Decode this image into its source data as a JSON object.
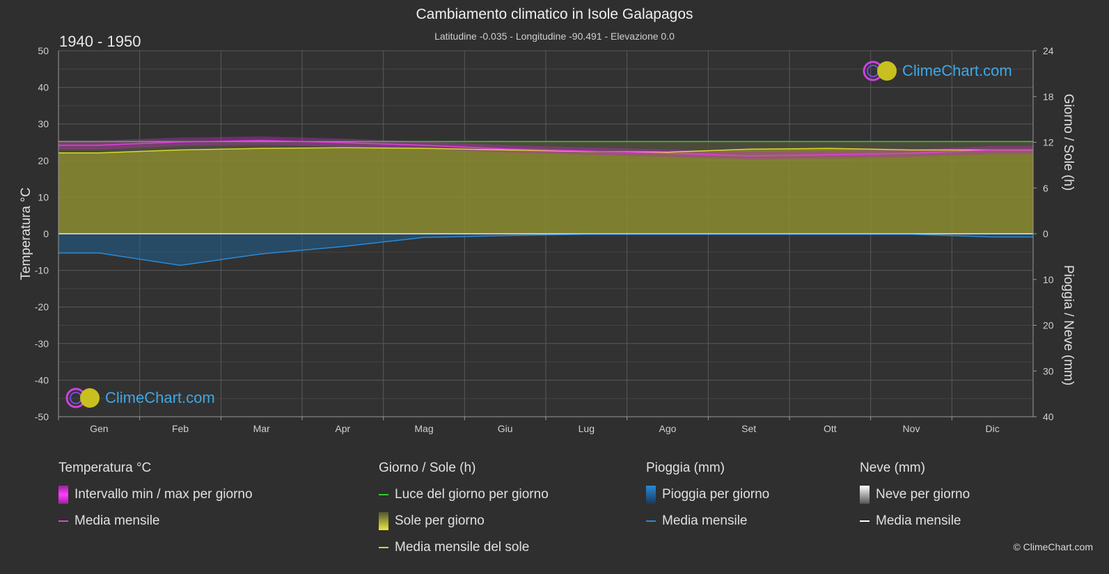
{
  "header": {
    "title": "Cambiamento climatico in Isole Galapagos",
    "subtitle": "Latitudine -0.035 - Longitudine -90.491 - Elevazione 0.0",
    "period": "1940 - 1950"
  },
  "logo_text": "ClimeChart.com",
  "copyright": "© ClimeChart.com",
  "chart_data": {
    "type": "area",
    "months": [
      "Gen",
      "Feb",
      "Mar",
      "Apr",
      "Mag",
      "Giu",
      "Lug",
      "Ago",
      "Set",
      "Ott",
      "Nov",
      "Dic"
    ],
    "axes": {
      "left": {
        "label": "Temperatura °C",
        "ylim": [
          -50,
          50
        ],
        "ticks": [
          50,
          40,
          30,
          20,
          10,
          0,
          -10,
          -20,
          -30,
          -40,
          -50
        ]
      },
      "right_top": {
        "label": "Giorno / Sole (h)",
        "ylim": [
          0,
          24
        ],
        "ticks": [
          24,
          18,
          12,
          6,
          0
        ]
      },
      "right_bottom": {
        "label": "Pioggia / Neve (mm)",
        "ylim": [
          0,
          40
        ],
        "ticks": [
          0,
          10,
          20,
          30,
          40
        ]
      }
    },
    "grid": true,
    "series": [
      {
        "name": "Luce del giorno per giorno",
        "unit": "h",
        "color": "#33cc33",
        "values": [
          12.1,
          12.1,
          12.1,
          12.1,
          12.1,
          12.1,
          12.1,
          12.1,
          12.1,
          12.1,
          12.1,
          12.1
        ]
      },
      {
        "name": "Media mensile del sole",
        "unit": "h",
        "color": "#d8d830",
        "values": [
          10.6,
          11.0,
          11.2,
          11.3,
          11.2,
          11.0,
          10.8,
          10.7,
          11.1,
          11.2,
          11.0,
          11.0
        ]
      },
      {
        "name": "Media mensile",
        "group": "Temperatura °C",
        "unit": "°C",
        "color": "#e040e0",
        "values": [
          24.2,
          25.1,
          25.5,
          24.9,
          24.2,
          23.2,
          22.6,
          22.0,
          21.3,
          21.6,
          22.0,
          22.9
        ]
      },
      {
        "name": "Intervallo min / max per giorno",
        "unit": "°C",
        "color": "#c020c0",
        "min": [
          23.0,
          24.0,
          24.3,
          23.8,
          23.2,
          22.2,
          21.6,
          21.0,
          20.4,
          20.6,
          21.0,
          21.8
        ],
        "max": [
          25.5,
          26.3,
          26.6,
          26.0,
          25.2,
          24.2,
          23.6,
          23.0,
          22.4,
          22.6,
          23.0,
          24.0
        ]
      },
      {
        "name": "Media mensile",
        "group": "Pioggia (mm)",
        "unit": "mm",
        "color": "#2a8ad8",
        "values": [
          4.2,
          6.9,
          4.4,
          2.8,
          0.8,
          0.4,
          0.1,
          0.1,
          0.1,
          0.1,
          0.1,
          0.7
        ]
      },
      {
        "name": "Media mensile",
        "group": "Neve (mm)",
        "unit": "mm",
        "color": "#ffffff",
        "values": [
          0,
          0,
          0,
          0,
          0,
          0,
          0,
          0,
          0,
          0,
          0,
          0
        ]
      }
    ]
  },
  "legend": {
    "temp": {
      "head": "Temperatura °C",
      "item1": "Intervallo min / max per giorno",
      "item2": "Media mensile"
    },
    "sun": {
      "head": "Giorno / Sole (h)",
      "item1": "Luce del giorno per giorno",
      "item2": "Sole per giorno",
      "item3": "Media mensile del sole"
    },
    "rain": {
      "head": "Pioggia (mm)",
      "item1": "Pioggia per giorno",
      "item2": "Media mensile"
    },
    "snow": {
      "head": "Neve (mm)",
      "item1": "Neve per giorno",
      "item2": "Media mensile"
    }
  },
  "colors": {
    "background": "#2f2f2f",
    "sun_fill": "#8c8c30",
    "rain_fill": "#1f5f8f",
    "daylight": "#33cc33",
    "sun_line": "#d8d830",
    "temp_line": "#e040e0",
    "rain_line": "#2a8ad8"
  }
}
